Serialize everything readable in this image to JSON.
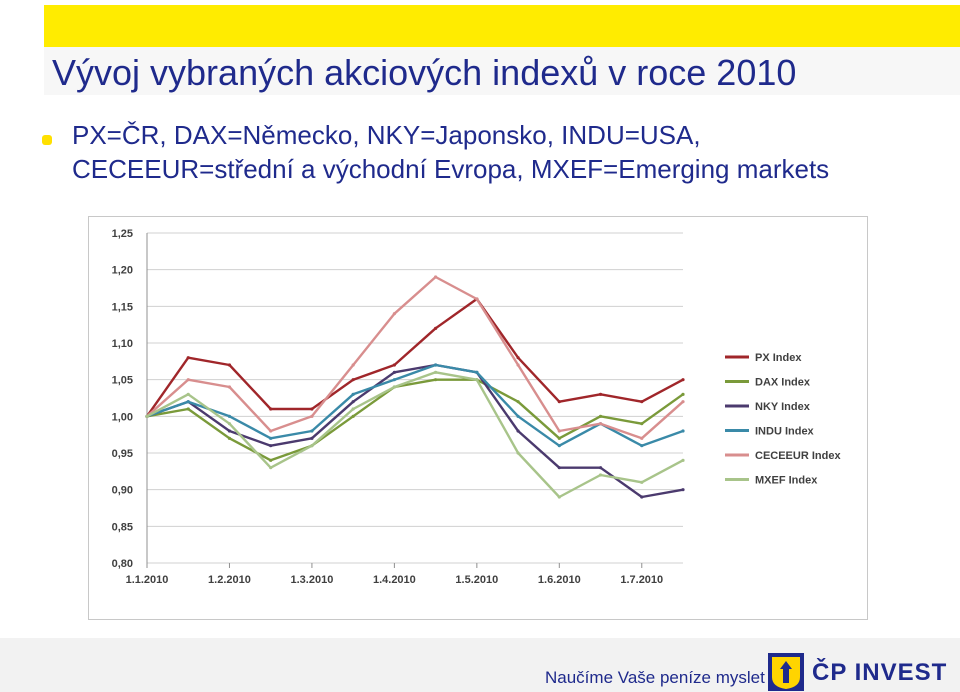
{
  "slide": {
    "title": "Vývoj vybraných akciových indexů v roce 2010",
    "subtitle_line1": "PX=ČR, DAX=Německo, NKY=Japonsko, INDU=USA,",
    "subtitle_line2": "CECEEUR=střední a východní Evropa, MXEF=Emerging markets"
  },
  "footer": {
    "slogan": "Naučíme Vaše peníze myslet",
    "logo_text": "ČP INVEST",
    "logo_icon": "cp-invest-logo-icon"
  },
  "colors": {
    "topbar": "#ffec00",
    "title_text": "#1f2a8c"
  },
  "chart_data": {
    "type": "line",
    "title": "",
    "xlabel": "",
    "ylabel": "",
    "ylim": [
      0.8,
      1.25
    ],
    "yticks": [
      "0,80",
      "0,85",
      "0,90",
      "0,95",
      "1,00",
      "1,05",
      "1,10",
      "1,15",
      "1,20",
      "1,25"
    ],
    "ytick_values": [
      0.8,
      0.85,
      0.9,
      0.95,
      1.0,
      1.05,
      1.1,
      1.15,
      1.2,
      1.25
    ],
    "x": [
      "1.1.2010",
      "15.1.2010",
      "1.2.2010",
      "15.2.2010",
      "1.3.2010",
      "15.3.2010",
      "1.4.2010",
      "15.4.2010",
      "1.5.2010",
      "15.5.2010",
      "1.6.2010",
      "15.6.2010",
      "1.7.2010",
      "15.7.2010"
    ],
    "xticks": [
      "1.1.2010",
      "1.2.2010",
      "1.3.2010",
      "1.4.2010",
      "1.5.2010",
      "1.6.2010",
      "1.7.2010"
    ],
    "xtick_positions": [
      0,
      2,
      4,
      6,
      8,
      10,
      12
    ],
    "grid": true,
    "legend_position": "right",
    "series": [
      {
        "name": "PX Index",
        "color": "#a0262a",
        "values": [
          1.0,
          1.08,
          1.07,
          1.01,
          1.01,
          1.05,
          1.07,
          1.12,
          1.16,
          1.08,
          1.02,
          1.03,
          1.02,
          1.05
        ]
      },
      {
        "name": "DAX Index",
        "color": "#7a9a3a",
        "values": [
          1.0,
          1.01,
          0.97,
          0.94,
          0.96,
          1.0,
          1.04,
          1.05,
          1.05,
          1.02,
          0.97,
          1.0,
          0.99,
          1.03
        ]
      },
      {
        "name": "NKY Index",
        "color": "#4b3a6e",
        "values": [
          1.0,
          1.02,
          0.98,
          0.96,
          0.97,
          1.02,
          1.06,
          1.07,
          1.06,
          0.98,
          0.93,
          0.93,
          0.89,
          0.9
        ]
      },
      {
        "name": "INDU Index",
        "color": "#3a8aa8",
        "values": [
          1.0,
          1.02,
          1.0,
          0.97,
          0.98,
          1.03,
          1.05,
          1.07,
          1.06,
          1.0,
          0.96,
          0.99,
          0.96,
          0.98
        ]
      },
      {
        "name": "CECEEUR Index",
        "color": "#d88e8e",
        "values": [
          1.0,
          1.05,
          1.04,
          0.98,
          1.0,
          1.07,
          1.14,
          1.19,
          1.16,
          1.07,
          0.98,
          0.99,
          0.97,
          1.02
        ]
      },
      {
        "name": "MXEF Index",
        "color": "#a8c48a",
        "values": [
          1.0,
          1.03,
          0.99,
          0.93,
          0.96,
          1.01,
          1.04,
          1.06,
          1.05,
          0.95,
          0.89,
          0.92,
          0.91,
          0.94
        ]
      }
    ]
  }
}
